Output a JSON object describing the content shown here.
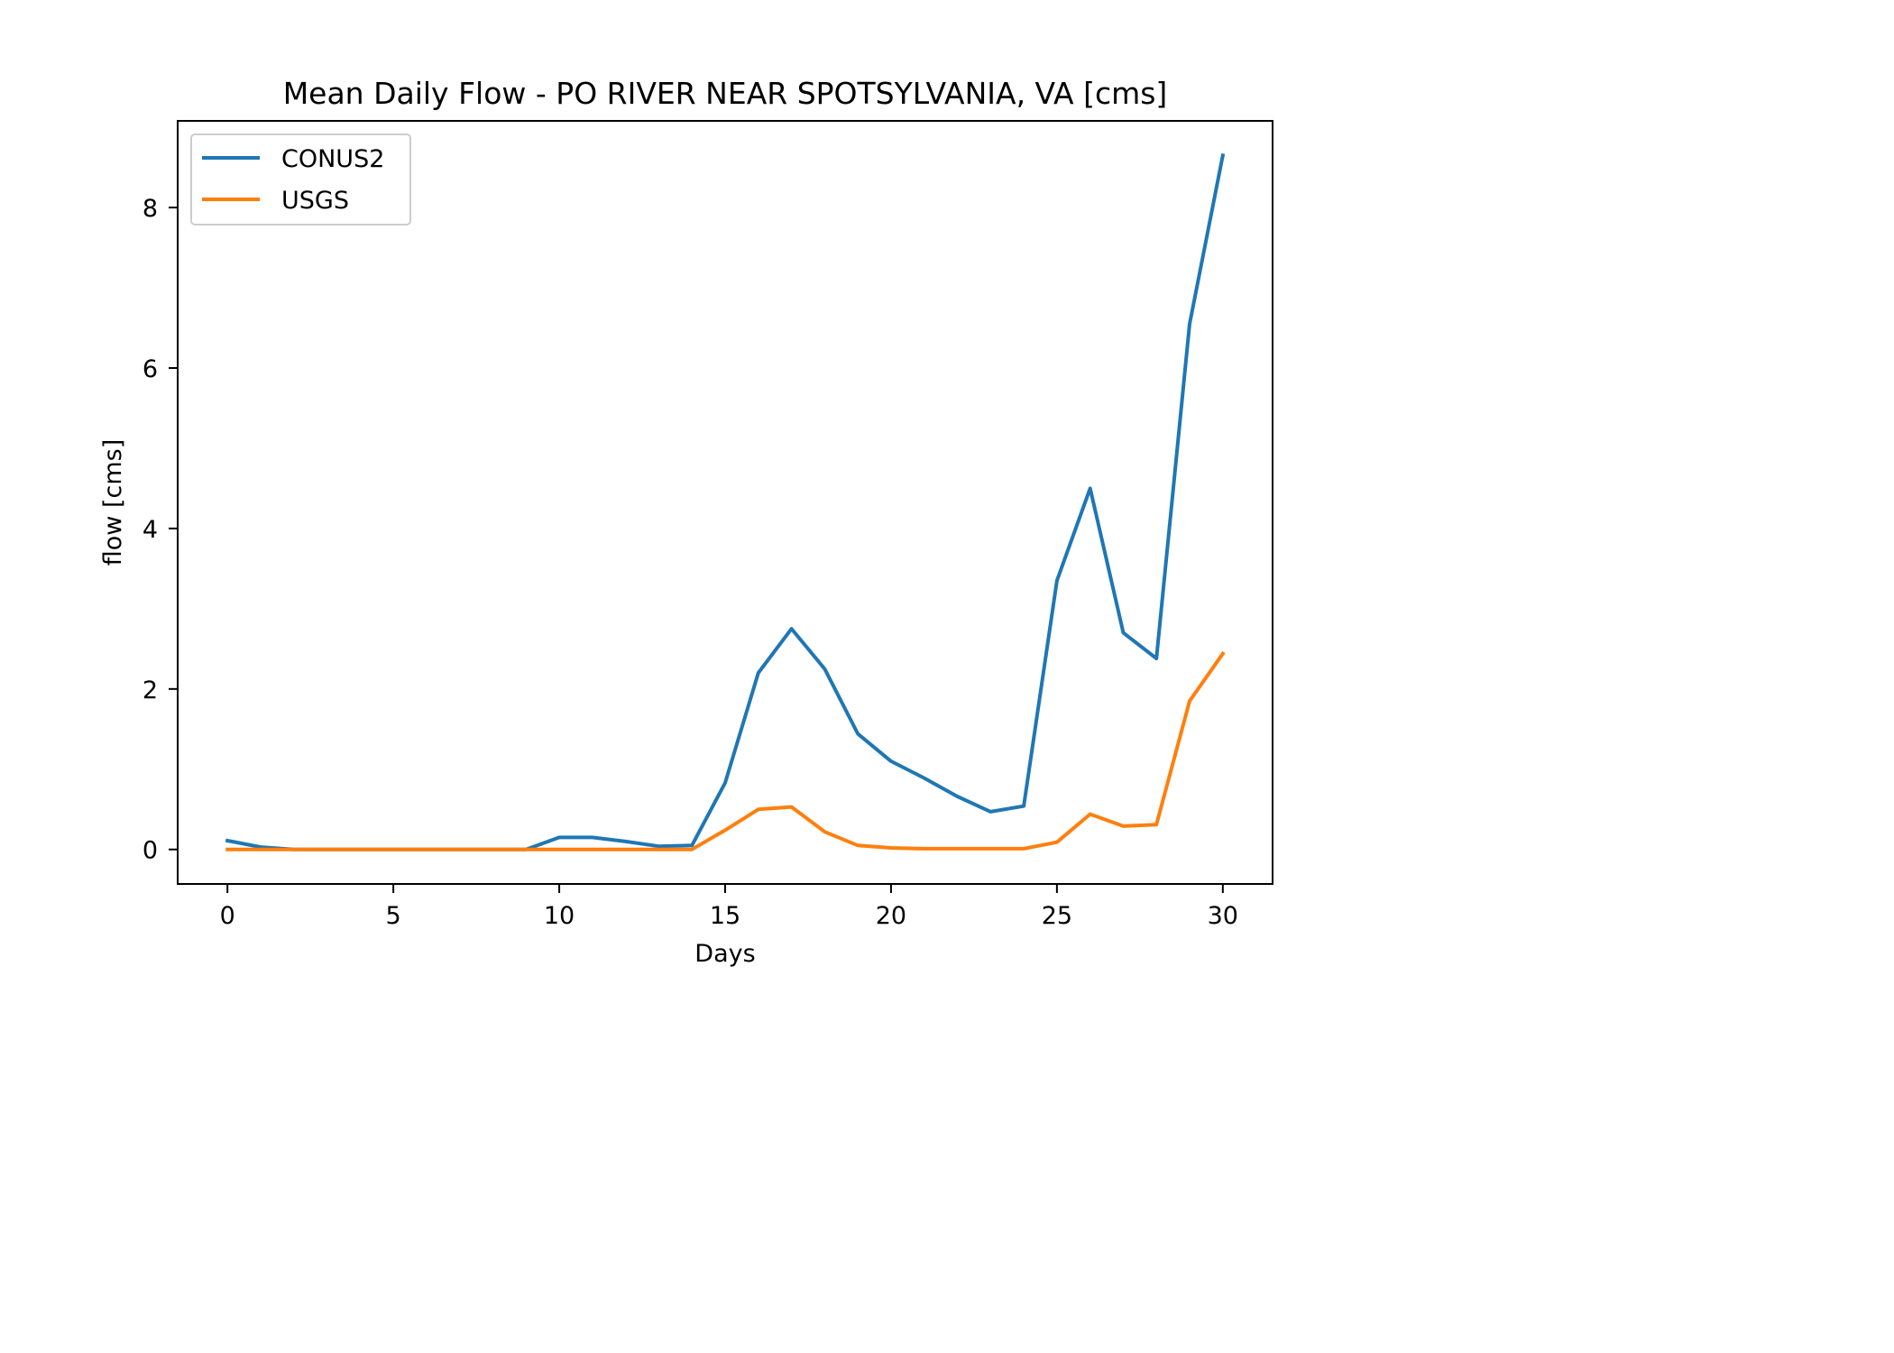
{
  "chart_data": {
    "type": "line",
    "title": "Mean Daily Flow - PO RIVER NEAR SPOTSYLVANIA, VA [cms]",
    "xlabel": "Days",
    "ylabel": "flow [cms]",
    "xlim": [
      -1.5,
      31.5
    ],
    "ylim": [
      -0.43,
      9.08
    ],
    "xticks": [
      0,
      5,
      10,
      15,
      20,
      25,
      30
    ],
    "yticks": [
      0,
      2,
      4,
      6,
      8
    ],
    "grid": false,
    "legend_position": "upper-left",
    "x": [
      0,
      1,
      2,
      3,
      4,
      5,
      6,
      7,
      8,
      9,
      10,
      11,
      12,
      13,
      14,
      15,
      16,
      17,
      18,
      19,
      20,
      21,
      22,
      23,
      24,
      25,
      26,
      27,
      28,
      29,
      30
    ],
    "series": [
      {
        "name": "CONUS2",
        "color": "#1f77b4",
        "values": [
          0.11,
          0.03,
          0.0,
          0.0,
          0.0,
          0.0,
          0.0,
          0.0,
          0.0,
          0.0,
          0.15,
          0.15,
          0.1,
          0.04,
          0.05,
          0.83,
          2.2,
          2.75,
          2.25,
          1.44,
          1.1,
          0.89,
          0.66,
          0.47,
          0.54,
          3.35,
          4.5,
          2.7,
          2.38,
          6.55,
          8.65
        ]
      },
      {
        "name": "USGS",
        "color": "#ff7f0e",
        "values": [
          0.0,
          0.0,
          0.0,
          0.0,
          0.0,
          0.0,
          0.0,
          0.0,
          0.0,
          0.0,
          0.0,
          0.0,
          0.0,
          0.0,
          0.0,
          0.24,
          0.5,
          0.53,
          0.22,
          0.05,
          0.02,
          0.01,
          0.01,
          0.01,
          0.01,
          0.09,
          0.44,
          0.29,
          0.31,
          1.85,
          2.44
        ]
      }
    ]
  }
}
